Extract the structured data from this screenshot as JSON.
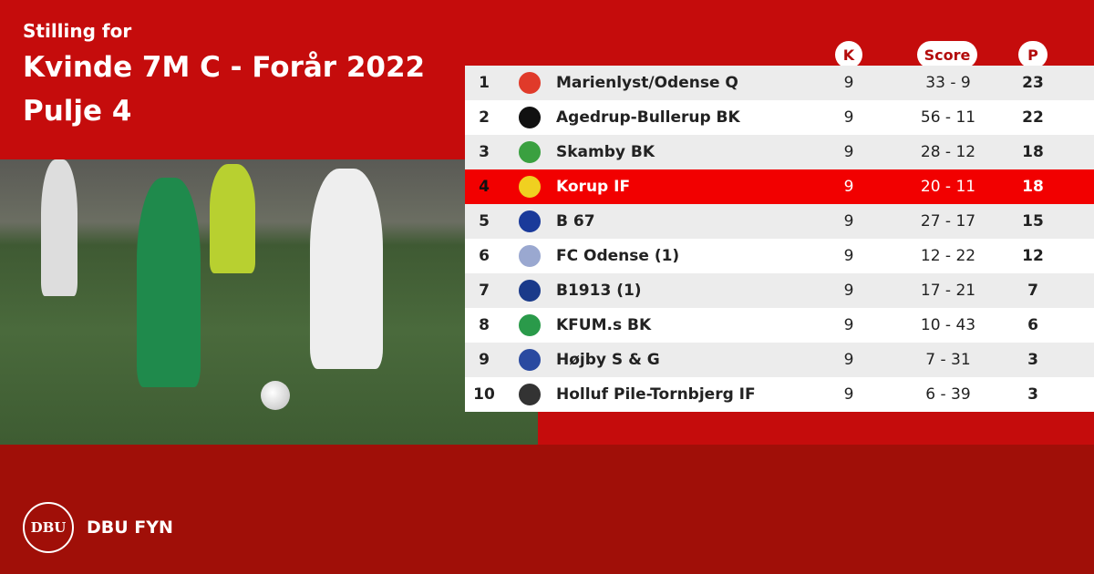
{
  "header": {
    "line1": "Stilling for",
    "line2": "Kvinde 7M C - Forår 2022",
    "line3": "Pulje 4"
  },
  "columns": {
    "k": "K",
    "score": "Score",
    "p": "P"
  },
  "colors": {
    "top": "#c50c0c",
    "bottom": "#a00f08",
    "highlight": "#f20000"
  },
  "rows": [
    {
      "pos": "1",
      "team": "Marienlyst/Odense Q",
      "k": "9",
      "score": "33 - 9",
      "p": "23",
      "logo": "#e03a2a"
    },
    {
      "pos": "2",
      "team": "Agedrup-Bullerup BK",
      "k": "9",
      "score": "56 - 11",
      "p": "22",
      "logo": "#111111"
    },
    {
      "pos": "3",
      "team": "Skamby BK",
      "k": "9",
      "score": "28 - 12",
      "p": "18",
      "logo": "#3aa040"
    },
    {
      "pos": "4",
      "team": "Korup IF",
      "k": "9",
      "score": "20 - 11",
      "p": "18",
      "logo": "#f0d020",
      "highlight": true
    },
    {
      "pos": "5",
      "team": "B 67",
      "k": "9",
      "score": "27 - 17",
      "p": "15",
      "logo": "#1a3a9a"
    },
    {
      "pos": "6",
      "team": "FC Odense (1)",
      "k": "9",
      "score": "12 - 22",
      "p": "12",
      "logo": "#9aa8d0"
    },
    {
      "pos": "7",
      "team": "B1913 (1)",
      "k": "9",
      "score": "17 - 21",
      "p": "7",
      "logo": "#1a3a8a"
    },
    {
      "pos": "8",
      "team": "KFUM.s BK",
      "k": "9",
      "score": "10 - 43",
      "p": "6",
      "logo": "#2a9a4a"
    },
    {
      "pos": "9",
      "team": "Højby S & G",
      "k": "9",
      "score": "7 - 31",
      "p": "3",
      "logo": "#2a4aa0"
    },
    {
      "pos": "10",
      "team": "Holluf Pile-Tornbjerg IF",
      "k": "9",
      "score": "6 - 39",
      "p": "3",
      "logo": "#333333"
    }
  ],
  "footer": {
    "logo_text": "DBU",
    "brand": "DBU FYN"
  }
}
